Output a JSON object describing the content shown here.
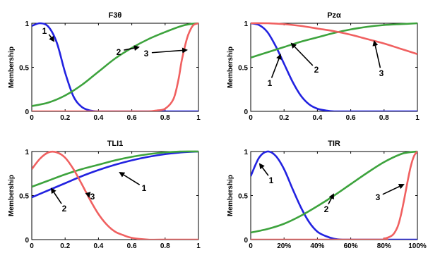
{
  "chart_data": [
    {
      "type": "line",
      "title": "F3θ",
      "ylabel": "Membership",
      "xlabel": "",
      "xlim": [
        0,
        1
      ],
      "ylim": [
        0,
        1
      ],
      "xticks": [
        0,
        0.2,
        0.4,
        0.6,
        0.8,
        1
      ],
      "xticklabels": [
        "0",
        "0.2",
        "0.4",
        "0.6",
        "0.8",
        "1"
      ],
      "yticks": [
        0,
        0.5,
        1
      ],
      "yticklabels": [
        "0",
        "0.5",
        "1"
      ],
      "grid": false,
      "series": [
        {
          "color": "#2222e0",
          "x": [
            0,
            0.05,
            0.1,
            0.15,
            0.2,
            0.25,
            0.3,
            0.35,
            0.4,
            0.5,
            0.7,
            1.0
          ],
          "y": [
            0.97,
            1.0,
            0.96,
            0.78,
            0.44,
            0.17,
            0.05,
            0.01,
            0.0,
            0.0,
            0.0,
            0.0
          ]
        },
        {
          "color": "#3da33d",
          "x": [
            0,
            0.1,
            0.2,
            0.3,
            0.4,
            0.5,
            0.6,
            0.7,
            0.8,
            0.9,
            0.95,
            1.0
          ],
          "y": [
            0.06,
            0.1,
            0.18,
            0.3,
            0.45,
            0.6,
            0.72,
            0.82,
            0.9,
            0.97,
            0.99,
            1.0
          ]
        },
        {
          "color": "#f06060",
          "x": [
            0,
            0.6,
            0.7,
            0.75,
            0.8,
            0.85,
            0.88,
            0.9,
            0.93,
            0.95,
            0.97,
            1.0
          ],
          "y": [
            0,
            0,
            0.0,
            0.01,
            0.03,
            0.14,
            0.36,
            0.58,
            0.82,
            0.92,
            0.98,
            1.0
          ]
        }
      ],
      "annotations": [
        {
          "text": "1",
          "x": 0.24,
          "y": 0.55
        },
        {
          "text": "2",
          "x": 0.49,
          "y": 0.6
        },
        {
          "text": "3",
          "x": 0.76,
          "y": 0.58
        }
      ]
    },
    {
      "type": "line",
      "title": "Pzα",
      "ylabel": "Membership",
      "xlabel": "",
      "xlim": [
        0,
        1
      ],
      "ylim": [
        0,
        1
      ],
      "xticks": [
        0,
        0.2,
        0.4,
        0.6,
        0.8,
        1
      ],
      "xticklabels": [
        "0",
        "0.2",
        "0.4",
        "0.6",
        "0.8",
        "1"
      ],
      "yticks": [
        0,
        0.5,
        1
      ],
      "yticklabels": [
        "0",
        "0.5",
        "1"
      ],
      "grid": false,
      "series": [
        {
          "color": "#2222e0",
          "x": [
            0,
            0.05,
            0.1,
            0.15,
            0.2,
            0.25,
            0.3,
            0.35,
            0.4,
            0.45,
            0.5,
            0.6,
            1.0
          ],
          "y": [
            1.0,
            0.98,
            0.9,
            0.74,
            0.54,
            0.34,
            0.18,
            0.08,
            0.03,
            0.01,
            0.0,
            0.0,
            0.0
          ]
        },
        {
          "color": "#3da33d",
          "x": [
            0,
            0.1,
            0.2,
            0.3,
            0.4,
            0.5,
            0.6,
            0.7,
            0.8,
            0.9,
            1.0
          ],
          "y": [
            0.61,
            0.67,
            0.73,
            0.79,
            0.84,
            0.89,
            0.93,
            0.96,
            0.98,
            0.99,
            1.0
          ]
        },
        {
          "color": "#f06060",
          "x": [
            0,
            0.1,
            0.2,
            0.3,
            0.4,
            0.5,
            0.6,
            0.7,
            0.8,
            0.9,
            1.0
          ],
          "y": [
            1.0,
            1.0,
            0.99,
            0.97,
            0.94,
            0.91,
            0.87,
            0.82,
            0.77,
            0.71,
            0.65
          ]
        }
      ],
      "annotations": [
        {
          "text": "1",
          "x": 0.16,
          "y": 0.27
        },
        {
          "text": "2",
          "x": 0.38,
          "y": 0.43
        },
        {
          "text": "3",
          "x": 0.8,
          "y": 0.4
        }
      ]
    },
    {
      "type": "line",
      "title": "TLI1",
      "ylabel": "Membership",
      "xlabel": "",
      "xlim": [
        0,
        1
      ],
      "ylim": [
        0,
        1
      ],
      "xticks": [
        0,
        0.2,
        0.4,
        0.6,
        0.8,
        1
      ],
      "xticklabels": [
        "0",
        "0.2",
        "0.4",
        "0.6",
        "0.8",
        "1"
      ],
      "yticks": [
        0,
        0.5,
        1
      ],
      "yticklabels": [
        "0",
        "0.5",
        "1"
      ],
      "grid": false,
      "series": [
        {
          "color": "#2222e0",
          "x": [
            0,
            0.1,
            0.2,
            0.3,
            0.4,
            0.5,
            0.6,
            0.7,
            0.8,
            0.9,
            1.0
          ],
          "y": [
            0.48,
            0.56,
            0.64,
            0.72,
            0.79,
            0.85,
            0.9,
            0.94,
            0.97,
            0.99,
            1.0
          ]
        },
        {
          "color": "#3da33d",
          "x": [
            0,
            0.1,
            0.2,
            0.3,
            0.4,
            0.5,
            0.6,
            0.7,
            0.8,
            0.9,
            1.0
          ],
          "y": [
            0.6,
            0.67,
            0.74,
            0.8,
            0.85,
            0.9,
            0.94,
            0.97,
            0.99,
            1.0,
            1.0
          ]
        },
        {
          "color": "#f06060",
          "x": [
            0,
            0.05,
            0.1,
            0.15,
            0.2,
            0.25,
            0.3,
            0.35,
            0.4,
            0.45,
            0.5,
            0.55,
            0.6,
            0.7,
            0.8,
            0.9,
            1.0
          ],
          "y": [
            0.8,
            0.92,
            0.99,
            0.99,
            0.93,
            0.8,
            0.63,
            0.45,
            0.29,
            0.17,
            0.09,
            0.05,
            0.02,
            0.0,
            0.0,
            0.0,
            0.0
          ]
        }
      ],
      "annotations": [
        {
          "text": "2",
          "x": 0.19,
          "y": 0.33
        },
        {
          "text": "3",
          "x": 0.36,
          "y": 0.44
        },
        {
          "text": "1",
          "x": 0.61,
          "y": 0.46
        }
      ]
    },
    {
      "type": "line",
      "title": "TIR",
      "ylabel": "Membership",
      "xlabel": "",
      "xlim": [
        0,
        100
      ],
      "ylim": [
        0,
        1
      ],
      "xticks": [
        0,
        20,
        40,
        60,
        80,
        100
      ],
      "xticklabels": [
        "0",
        "20%",
        "40%",
        "60%",
        "80%",
        "100%"
      ],
      "yticks": [
        0,
        0.5,
        1
      ],
      "yticklabels": [
        "0",
        "0.5",
        "1"
      ],
      "grid": false,
      "series": [
        {
          "color": "#2222e0",
          "x": [
            0,
            5,
            10,
            15,
            20,
            25,
            30,
            35,
            40,
            45,
            50,
            55,
            60,
            70,
            100
          ],
          "y": [
            0.72,
            0.93,
            1.0,
            0.95,
            0.8,
            0.58,
            0.37,
            0.2,
            0.09,
            0.04,
            0.01,
            0.0,
            0.0,
            0.0,
            0.0
          ]
        },
        {
          "color": "#3da33d",
          "x": [
            0,
            10,
            20,
            30,
            40,
            50,
            60,
            70,
            80,
            90,
            95,
            100
          ],
          "y": [
            0.08,
            0.12,
            0.18,
            0.27,
            0.38,
            0.5,
            0.63,
            0.76,
            0.88,
            0.97,
            0.99,
            1.0
          ]
        },
        {
          "color": "#f06060",
          "x": [
            0,
            75,
            80,
            85,
            88,
            90,
            92,
            94,
            96,
            98,
            100
          ],
          "y": [
            0,
            0,
            0.01,
            0.05,
            0.14,
            0.27,
            0.45,
            0.65,
            0.83,
            0.95,
            1.0
          ]
        }
      ],
      "annotations": [
        {
          "text": "1",
          "x": 10,
          "y": 0.66
        },
        {
          "text": "2",
          "x": 46,
          "y": 0.25
        },
        {
          "text": "3",
          "x": 78,
          "y": 0.38
        }
      ]
    }
  ]
}
